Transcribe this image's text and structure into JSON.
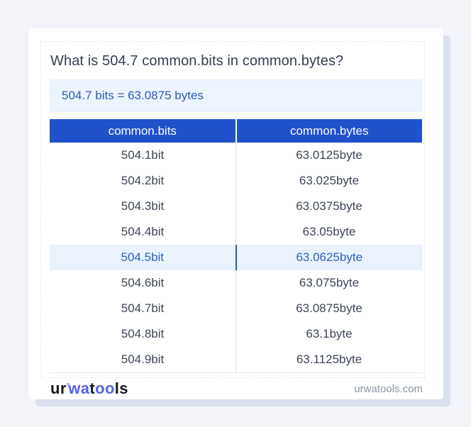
{
  "card": {
    "title": "What is 504.7 common.bits in common.bytes?",
    "result": "504.7 bits = 63.0875 bytes"
  },
  "table": {
    "headers": [
      "common.bits",
      "common.bytes"
    ],
    "rows": [
      {
        "bits": "504.1bit",
        "bytes": "63.0125byte"
      },
      {
        "bits": "504.2bit",
        "bytes": "63.025byte"
      },
      {
        "bits": "504.3bit",
        "bytes": "63.0375byte"
      },
      {
        "bits": "504.4bit",
        "bytes": "63.05byte"
      },
      {
        "bits": "504.5bit",
        "bytes": "63.0625byte"
      },
      {
        "bits": "504.6bit",
        "bytes": "63.075byte"
      },
      {
        "bits": "504.7bit",
        "bytes": "63.0875byte"
      },
      {
        "bits": "504.8bit",
        "bytes": "63.1byte"
      },
      {
        "bits": "504.9bit",
        "bytes": "63.1125byte"
      }
    ],
    "highlighted_row_value": "504.5bit"
  },
  "footer": {
    "logo_segments": [
      "ur",
      "°",
      "wa",
      "t",
      "oo",
      "ls"
    ],
    "website": "urwatools.com"
  },
  "colors": {
    "page_bg": "#f2f4fa",
    "card_shadow": "#dbe0ee",
    "header_bg": "#2052cc",
    "accent_blue": "#2e5cb8",
    "highlight_bg": "#eaf3fd",
    "highlight_text": "#2c5fc0",
    "result_box_bg": "#ecf4fd",
    "logo_blue": "#5363ea",
    "domain_text": "#8d95a3"
  }
}
